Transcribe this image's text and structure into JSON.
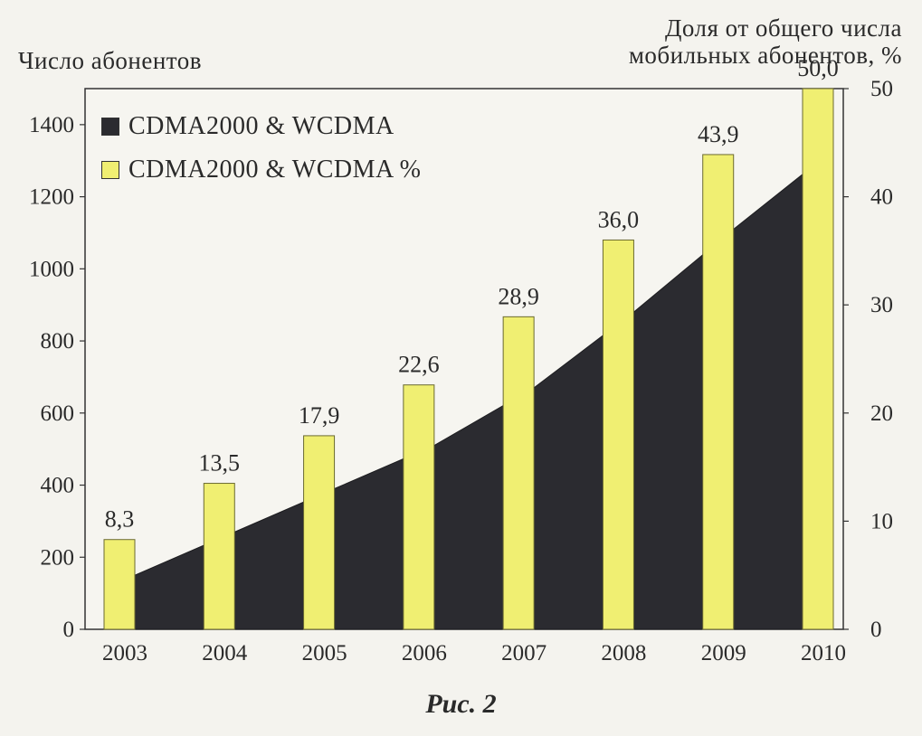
{
  "chart_data": {
    "type": "bar",
    "title": "",
    "caption": "Рис. 2",
    "ylabel_left": "Число абонентов",
    "ylabel_right": "Доля от общего числа\nмобильных абонентов, %",
    "categories": [
      "2003",
      "2004",
      "2005",
      "2006",
      "2007",
      "2008",
      "2009",
      "2010"
    ],
    "ylim_left": [
      0,
      1500
    ],
    "yticks_left": [
      "0",
      "200",
      "400",
      "600",
      "800",
      "1000",
      "1200",
      "1400"
    ],
    "ylim_right": [
      0,
      50
    ],
    "yticks_right": [
      "0",
      "10",
      "20",
      "30",
      "40",
      "50"
    ],
    "series": [
      {
        "name": "CDMA2000 & WCDMA",
        "type": "area",
        "axis": "left",
        "color": "#2b2b30",
        "values": [
          150,
          270,
          390,
          510,
          670,
          880,
          1110,
          1330
        ]
      },
      {
        "name": "CDMA2000 & WCDMA %",
        "type": "bar",
        "axis": "right",
        "color": "#f0ef72",
        "values": [
          8.3,
          13.5,
          17.9,
          22.6,
          28.9,
          36.0,
          43.9,
          50.0
        ],
        "labels": [
          "8,3",
          "13,5",
          "17,9",
          "22,6",
          "28,9",
          "36,0",
          "43,9",
          "50,0"
        ]
      }
    ],
    "legend_position": "top-left",
    "grid": false
  }
}
